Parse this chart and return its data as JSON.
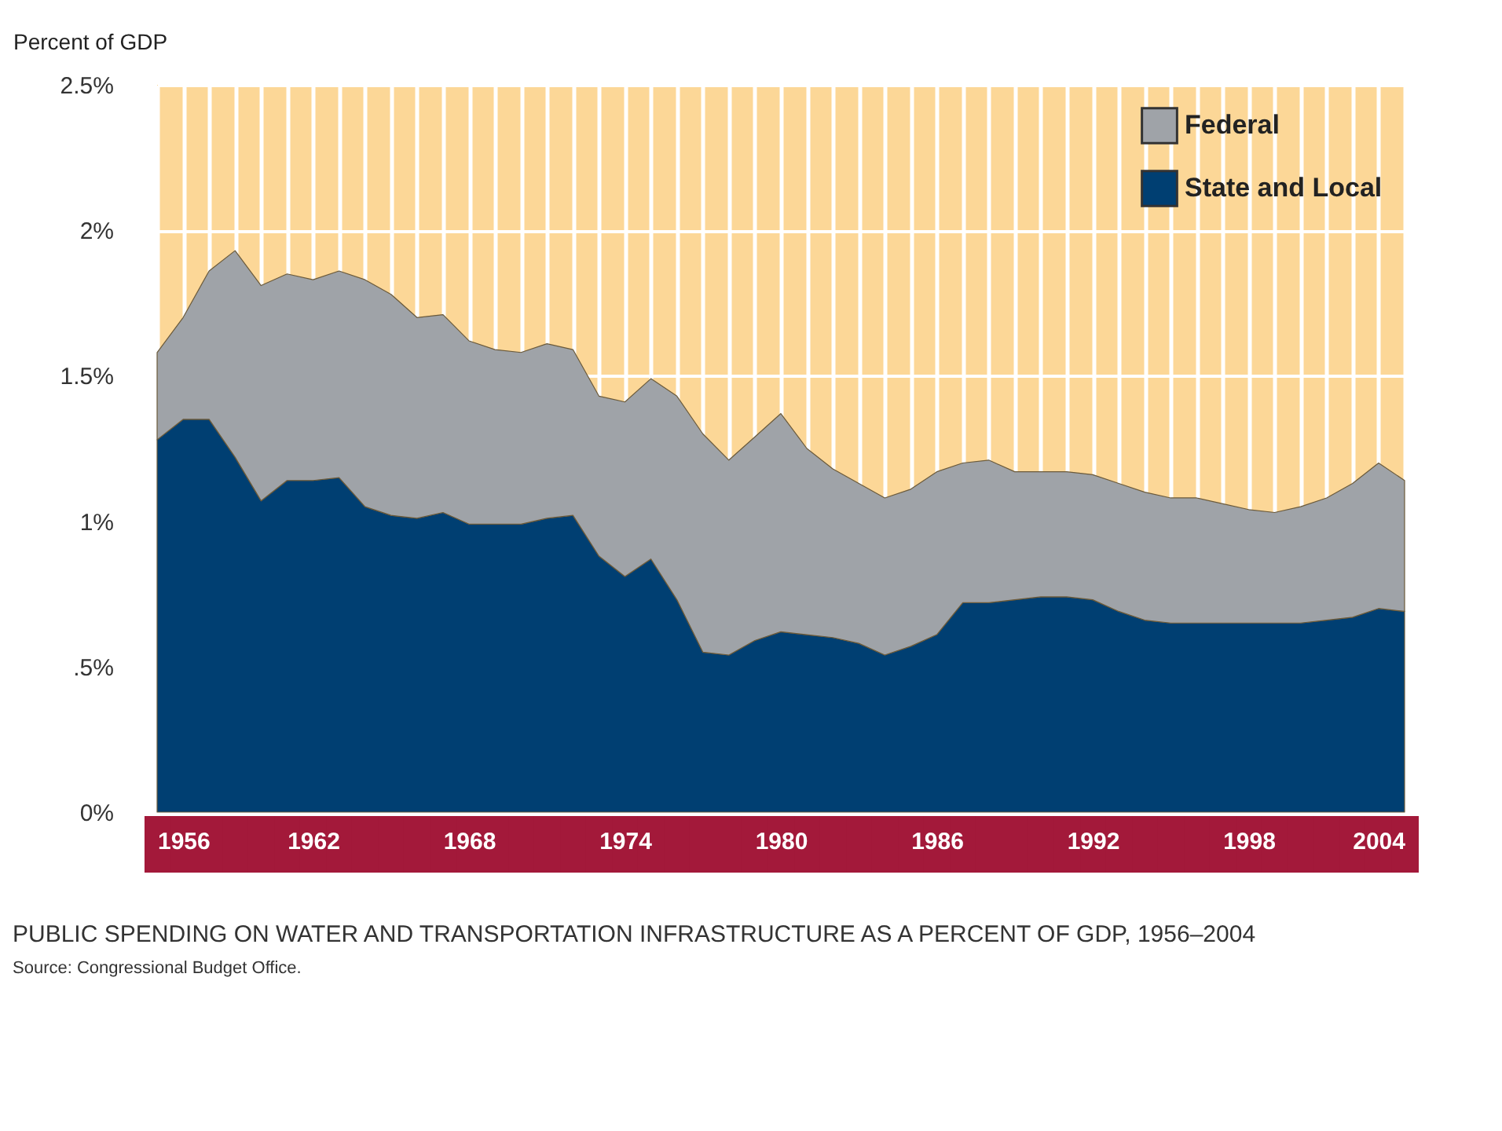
{
  "chart_data": {
    "type": "area",
    "title": "PUBLIC SPENDING ON WATER AND TRANSPORTATION INFRASTRUCTURE AS A PERCENT OF GDP, 1956–2004",
    "ylabel": "Percent of GDP",
    "annotations": [
      "Source: Congressional Budget Office."
    ],
    "stacked": true,
    "x": [
      1956,
      1957,
      1958,
      1959,
      1960,
      1961,
      1962,
      1963,
      1964,
      1965,
      1966,
      1967,
      1968,
      1969,
      1970,
      1971,
      1972,
      1973,
      1974,
      1975,
      1976,
      1977,
      1978,
      1979,
      1980,
      1981,
      1982,
      1983,
      1984,
      1985,
      1986,
      1987,
      1988,
      1989,
      1990,
      1991,
      1992,
      1993,
      1994,
      1995,
      1996,
      1997,
      1998,
      1999,
      2000,
      2001,
      2002,
      2003,
      2004
    ],
    "series": [
      {
        "name": "State and Local",
        "color": "#003f72",
        "values": [
          1.28,
          1.35,
          1.35,
          1.22,
          1.07,
          1.14,
          1.14,
          1.15,
          1.05,
          1.02,
          1.01,
          1.03,
          0.99,
          0.99,
          0.99,
          1.01,
          1.02,
          0.88,
          0.81,
          0.87,
          0.73,
          0.55,
          0.54,
          0.59,
          0.62,
          0.61,
          0.6,
          0.58,
          0.54,
          0.57,
          0.61,
          0.72,
          0.72,
          0.73,
          0.74,
          0.74,
          0.73,
          0.69,
          0.66,
          0.65,
          0.65,
          0.65,
          0.65,
          0.65,
          0.65,
          0.66,
          0.67,
          0.7,
          0.69
        ]
      },
      {
        "name": "Federal",
        "color": "#9fa3a8",
        "values": [
          0.3,
          0.35,
          0.51,
          0.71,
          0.74,
          0.71,
          0.69,
          0.71,
          0.78,
          0.76,
          0.69,
          0.68,
          0.63,
          0.6,
          0.59,
          0.6,
          0.57,
          0.55,
          0.6,
          0.62,
          0.7,
          0.75,
          0.67,
          0.7,
          0.75,
          0.64,
          0.58,
          0.55,
          0.54,
          0.54,
          0.56,
          0.48,
          0.49,
          0.44,
          0.43,
          0.43,
          0.43,
          0.44,
          0.44,
          0.43,
          0.43,
          0.41,
          0.39,
          0.38,
          0.4,
          0.42,
          0.46,
          0.5,
          0.45
        ]
      }
    ],
    "xlim": [
      1956,
      2004
    ],
    "xticks": [
      1956,
      {
        "value": 1957,
        "label": null
      },
      {
        "value": 1958,
        "label": null
      },
      {
        "value": 1959,
        "label": null
      },
      {
        "value": 1960,
        "label": null
      },
      {
        "value": 1961,
        "label": null
      },
      1962,
      {
        "value": 1963,
        "label": null
      },
      {
        "value": 1964,
        "label": null
      },
      {
        "value": 1965,
        "label": null
      },
      {
        "value": 1966,
        "label": null
      },
      {
        "value": 1967,
        "label": null
      },
      1968,
      {
        "value": 1969,
        "label": null
      },
      {
        "value": 1970,
        "label": null
      },
      {
        "value": 1971,
        "label": null
      },
      {
        "value": 1972,
        "label": null
      },
      {
        "value": 1973,
        "label": null
      },
      1974,
      {
        "value": 1975,
        "label": null
      },
      {
        "value": 1976,
        "label": null
      },
      {
        "value": 1977,
        "label": null
      },
      {
        "value": 1978,
        "label": null
      },
      {
        "value": 1979,
        "label": null
      },
      1980,
      {
        "value": 1981,
        "label": null
      },
      {
        "value": 1982,
        "label": null
      },
      {
        "value": 1983,
        "label": null
      },
      {
        "value": 1984,
        "label": null
      },
      {
        "value": 1985,
        "label": null
      },
      1986,
      {
        "value": 1987,
        "label": null
      },
      {
        "value": 1988,
        "label": null
      },
      {
        "value": 1989,
        "label": null
      },
      {
        "value": 1990,
        "label": null
      },
      {
        "value": 1991,
        "label": null
      },
      1992,
      {
        "value": 1993,
        "label": null
      },
      {
        "value": 1994,
        "label": null
      },
      {
        "value": 1995,
        "label": null
      },
      {
        "value": 1996,
        "label": null
      },
      {
        "value": 1997,
        "label": null
      },
      1998,
      {
        "value": 1999,
        "label": null
      },
      {
        "value": 2000,
        "label": null
      },
      {
        "value": 2001,
        "label": null
      },
      {
        "value": 2002,
        "label": null
      },
      {
        "value": 2003,
        "label": null
      },
      2004
    ],
    "ylim": [
      0,
      2.5
    ],
    "yticks": [
      {
        "value": 0,
        "label": "0%"
      },
      {
        "value": 0.5,
        "label": ".5%"
      },
      {
        "value": 1,
        "label": "1%"
      },
      {
        "value": 1.5,
        "label": "1.5%"
      },
      {
        "value": 2,
        "label": "2%"
      },
      {
        "value": 2.5,
        "label": "2.5%"
      }
    ],
    "grid": true,
    "legend": "top right"
  }
}
